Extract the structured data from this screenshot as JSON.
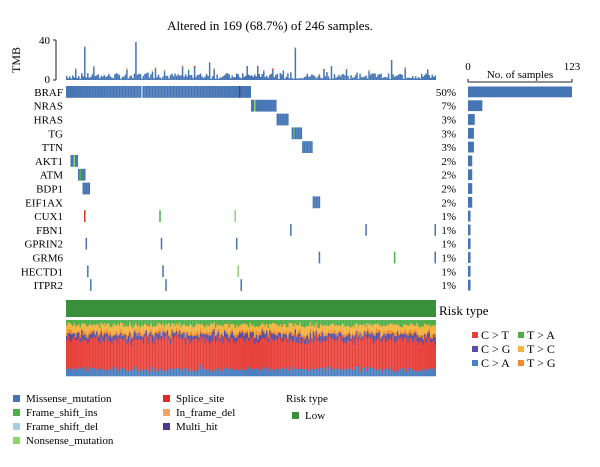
{
  "chart_data": {
    "type": "oncoplot",
    "title": "Altered in 169 (68.7%) of 246 samples.",
    "top_bar": {
      "ylabel": "TMB",
      "ticks": [
        "40",
        "0"
      ],
      "ylim": [
        0,
        40
      ]
    },
    "right_bar": {
      "xlabel": "No. of samples",
      "ticks": [
        "0",
        "123"
      ],
      "xlim": [
        0,
        123
      ]
    },
    "genes": [
      {
        "name": "BRAF",
        "pct": "50%",
        "count": 123
      },
      {
        "name": "NRAS",
        "pct": "7%",
        "count": 17
      },
      {
        "name": "HRAS",
        "pct": "3%",
        "count": 8
      },
      {
        "name": "TG",
        "pct": "3%",
        "count": 7
      },
      {
        "name": "TTN",
        "pct": "3%",
        "count": 7
      },
      {
        "name": "AKT1",
        "pct": "2%",
        "count": 5
      },
      {
        "name": "ATM",
        "pct": "2%",
        "count": 5
      },
      {
        "name": "BDP1",
        "pct": "2%",
        "count": 5
      },
      {
        "name": "EIF1AX",
        "pct": "2%",
        "count": 5
      },
      {
        "name": "CUX1",
        "pct": "1%",
        "count": 3
      },
      {
        "name": "FBN1",
        "pct": "1%",
        "count": 3
      },
      {
        "name": "GPRIN2",
        "pct": "1%",
        "count": 3
      },
      {
        "name": "GRM6",
        "pct": "1%",
        "count": 3
      },
      {
        "name": "HECTD1",
        "pct": "1%",
        "count": 3
      },
      {
        "name": "ITPR2",
        "pct": "1%",
        "count": 3
      }
    ],
    "risk_type_label": "Risk type",
    "mutation_legend": [
      {
        "label": "Missense_mutation",
        "color": "#4575b4"
      },
      {
        "label": "Splice_site",
        "color": "#d73027"
      },
      {
        "label": "Frame_shift_ins",
        "color": "#4daf4a"
      },
      {
        "label": "In_frame_del",
        "color": "#f4a460"
      },
      {
        "label": "Frame_shift_del",
        "color": "#a6cee3"
      },
      {
        "label": "Multi_hit",
        "color": "#4b3a8c"
      },
      {
        "label": "Nonsense_mutation",
        "color": "#8fd36b"
      }
    ],
    "risk_legend": {
      "title": "Risk type",
      "items": [
        {
          "label": "Low",
          "color": "#3a8f3a"
        }
      ]
    },
    "substitution_legend": [
      {
        "label": "C > T",
        "color": "#e8413b"
      },
      {
        "label": "T > A",
        "color": "#4daf4a"
      },
      {
        "label": "C > G",
        "color": "#5a4fa0"
      },
      {
        "label": "T > C",
        "color": "#f2b341"
      },
      {
        "label": "C > A",
        "color": "#4a7fc0"
      },
      {
        "label": "T > G",
        "color": "#f08a2a"
      }
    ]
  }
}
